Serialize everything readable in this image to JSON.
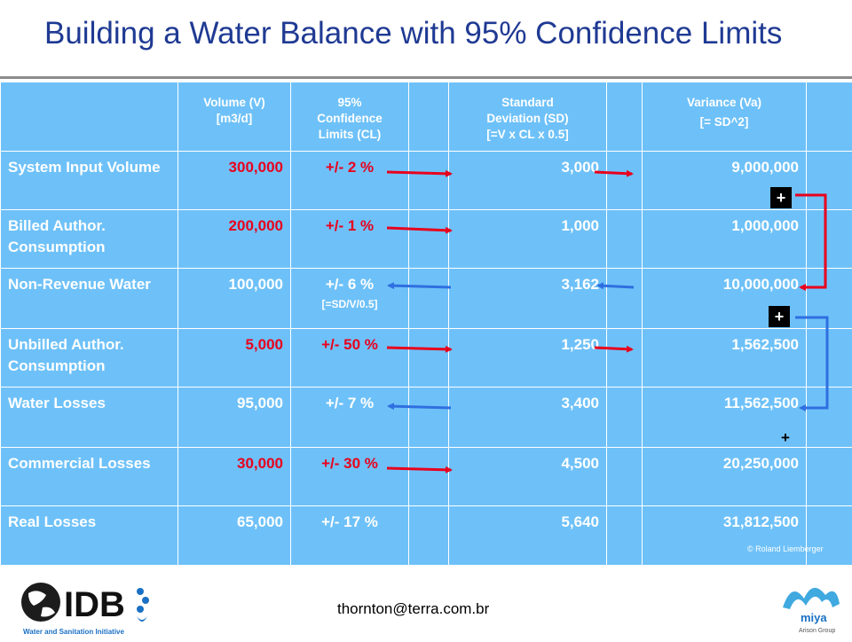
{
  "title": "Building a Water Balance with 95% Confidence Limits",
  "headers": {
    "volume_l1": "Volume (V)",
    "volume_l2": "[m3/d]",
    "cl_l1": "95%",
    "cl_l2": "Confidence",
    "cl_l3": "Limits (CL)",
    "sd_l1": "Standard",
    "sd_l2": "Deviation (SD)",
    "sd_l3": "[=V x CL x 0.5]",
    "var_l1": "Variance (Va)",
    "var_l2": "[= SD^2]"
  },
  "rows": [
    {
      "label": "System Input Volume",
      "volume": "300,000",
      "cl": "+/- 2 %",
      "sd": "3,000",
      "variance": "9,000,000"
    },
    {
      "label": "Billed Author. Consumption",
      "volume": "200,000",
      "cl": "+/- 1 %",
      "sd": "1,000",
      "variance": "1,000,000"
    },
    {
      "label": "Non-Revenue Water",
      "volume": "100,000",
      "cl": "+/- 6 %",
      "cl_note": "[=SD/V/0.5]",
      "sd": "3,162",
      "variance": "10,000,000"
    },
    {
      "label": "Unbilled Author. Consumption",
      "volume": "5,000",
      "cl": "+/- 50 %",
      "sd": "1,250",
      "variance": "1,562,500"
    },
    {
      "label": "Water Losses",
      "volume": "95,000",
      "cl": "+/- 7 %",
      "sd": "3,400",
      "variance": "11,562,500"
    },
    {
      "label": "Commercial Losses",
      "volume": "30,000",
      "cl": "+/- 30 %",
      "sd": "4,500",
      "variance": "20,250,000"
    },
    {
      "label": "Real Losses",
      "volume": "65,000",
      "cl": "+/- 17 %",
      "sd": "5,640",
      "variance": "31,812,500"
    }
  ],
  "plus_signs": {
    "first": "+",
    "second": "+",
    "third": "+"
  },
  "copyright": "© Roland Liemberger",
  "footer": {
    "email": "thornton@terra.com.br",
    "idb_logo_text": "IDB",
    "idb_sub": "Water and Sanitation Initiative",
    "miya_logo_text": "miya",
    "miya_sub": "Arison Group"
  },
  "colors": {
    "table_bg": "#6ec1f8",
    "title": "#1f3a93",
    "red_arrow": "#e8001d",
    "blue_arrow": "#2f6fe0"
  }
}
